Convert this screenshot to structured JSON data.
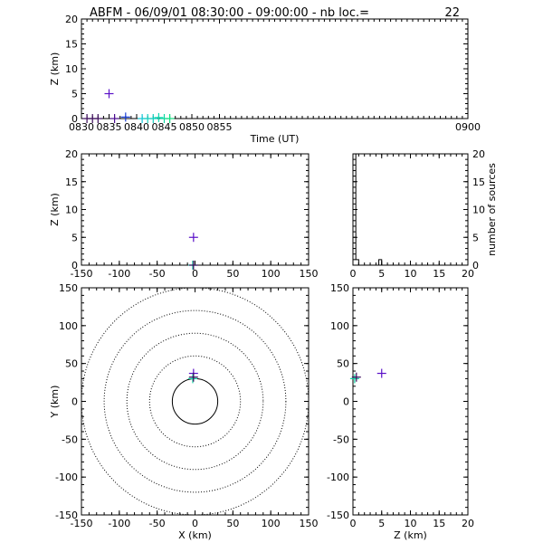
{
  "header": {
    "title": "ABFM - 06/09/01 08:30:00 - 09:00:00 - nb loc.=",
    "count": "22"
  },
  "chart_data": [
    {
      "id": "time_height",
      "type": "scatter",
      "xlabel": "Time (UT)",
      "ylabel": "Z (km)",
      "xlim": [
        830,
        900
      ],
      "ylim": [
        0,
        20
      ],
      "x_ticks": [
        "0830",
        "0835",
        "0840",
        "0845",
        "0850",
        "0855",
        "0900"
      ],
      "y_ticks": [
        "0",
        "5",
        "10",
        "15",
        "20"
      ],
      "points": [
        {
          "x": 831,
          "y": 0,
          "color": "#3a0a5a"
        },
        {
          "x": 832,
          "y": 0,
          "color": "#3a0a5a"
        },
        {
          "x": 833,
          "y": 0,
          "color": "#3a0a5a"
        },
        {
          "x": 835,
          "y": 5,
          "color": "#5a10c8"
        },
        {
          "x": 836,
          "y": 0,
          "color": "#4a0a90"
        },
        {
          "x": 838,
          "y": 0.3,
          "color": "#1a40d8"
        },
        {
          "x": 841,
          "y": 0,
          "color": "#10c8d8"
        },
        {
          "x": 842,
          "y": 0,
          "color": "#10d0c0"
        },
        {
          "x": 843,
          "y": 0,
          "color": "#10d0c0"
        },
        {
          "x": 844,
          "y": 0.2,
          "color": "#10d8b0"
        },
        {
          "x": 845,
          "y": 0,
          "color": "#10d8a0"
        },
        {
          "x": 846,
          "y": 0,
          "color": "#10e080"
        }
      ]
    },
    {
      "id": "x_height",
      "type": "scatter",
      "ylabel": "Z (km)",
      "xlim": [
        -150,
        150
      ],
      "ylim": [
        0,
        20
      ],
      "x_ticks": [
        "-150",
        "-100",
        "-50",
        "0",
        "50",
        "100",
        "150"
      ],
      "y_ticks": [
        "0",
        "5",
        "10",
        "15",
        "20"
      ],
      "points": [
        {
          "x": -2,
          "y": 5,
          "color": "#5a10c8"
        },
        {
          "x": -3,
          "y": 0,
          "color": "#10d0a0"
        },
        {
          "x": -2,
          "y": 0,
          "color": "#3a0a5a"
        }
      ]
    },
    {
      "id": "height_histogram",
      "type": "bar",
      "ylabel": "number of sources",
      "xlim": [
        0,
        20
      ],
      "ylim": [
        0,
        20
      ],
      "x_ticks": [
        "0",
        "5",
        "10",
        "15",
        "20"
      ],
      "y_ticks": [
        "0",
        "5",
        "10",
        "15",
        "20"
      ],
      "bins": [
        0.5,
        1,
        1.5,
        2,
        2.5,
        3,
        3.5,
        4,
        4.5,
        5,
        5.5,
        6,
        6.5,
        7,
        7.5,
        8,
        8.5,
        9,
        9.5,
        10,
        10.5,
        11,
        11.5,
        12,
        12.5,
        13,
        13.5,
        14,
        14.5,
        15,
        15.5,
        16,
        16.5,
        17,
        17.5,
        18,
        18.5,
        19,
        19.5,
        20
      ],
      "counts": [
        20,
        1,
        0,
        0,
        0,
        0,
        0,
        0,
        0,
        1,
        0,
        0,
        0,
        0,
        0,
        0,
        0,
        0,
        0,
        0,
        0,
        0,
        0,
        0,
        0,
        0,
        0,
        0,
        0,
        0,
        0,
        0,
        0,
        0,
        0,
        0,
        0,
        0,
        0,
        0
      ]
    },
    {
      "id": "plan_view",
      "type": "scatter",
      "xlabel": "X (km)",
      "ylabel": "Y (km)",
      "xlim": [
        -150,
        150
      ],
      "ylim": [
        -150,
        150
      ],
      "x_ticks": [
        "-150",
        "-100",
        "-50",
        "0",
        "50",
        "100",
        "150"
      ],
      "y_ticks": [
        "-150",
        "-100",
        "-50",
        "0",
        "50",
        "100",
        "150"
      ],
      "range_rings_km": [
        30,
        60,
        90,
        120,
        150
      ],
      "points": [
        {
          "x": -2,
          "y": 37,
          "color": "#5a10c8"
        },
        {
          "x": -3,
          "y": 30,
          "color": "#10d0a0"
        },
        {
          "x": -2,
          "y": 32,
          "color": "#3a0a5a"
        }
      ]
    },
    {
      "id": "height_y",
      "type": "scatter",
      "xlabel": "Z (km)",
      "xlim": [
        0,
        20
      ],
      "ylim": [
        -150,
        150
      ],
      "x_ticks": [
        "0",
        "5",
        "10",
        "15",
        "20"
      ],
      "y_ticks": [
        "-150",
        "-100",
        "-50",
        "0",
        "50",
        "100",
        "150"
      ],
      "points": [
        {
          "x": 5,
          "y": 37,
          "color": "#5a10c8"
        },
        {
          "x": 0.3,
          "y": 30,
          "color": "#10d0a0"
        },
        {
          "x": 0.6,
          "y": 32,
          "color": "#3a0a5a"
        }
      ]
    }
  ]
}
